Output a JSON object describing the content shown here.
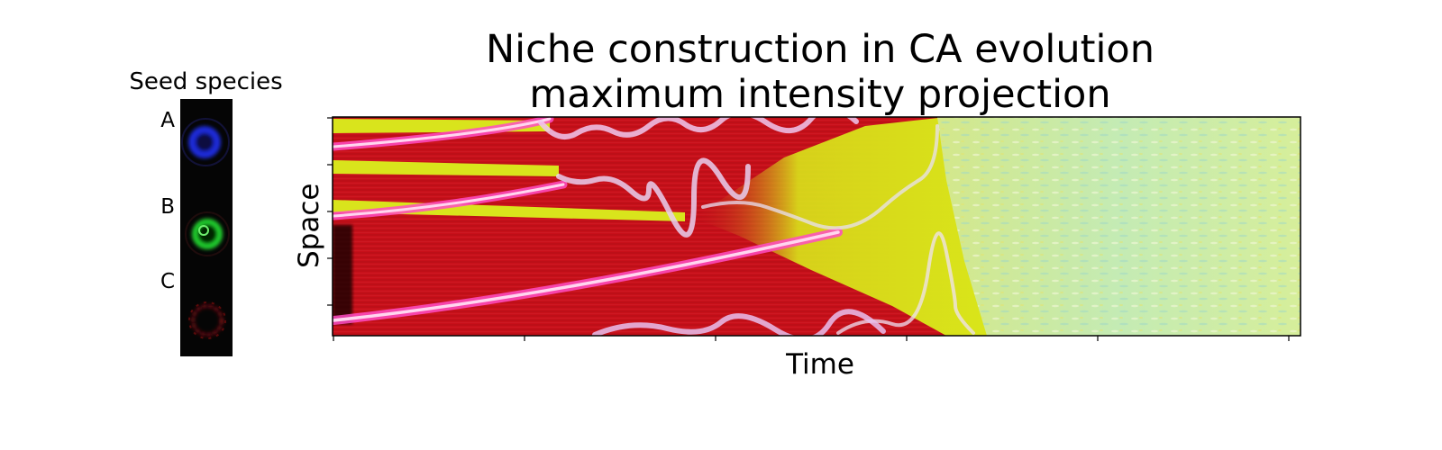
{
  "chart_data": [
    {
      "type": "heatmap",
      "title_lines": [
        "Niche construction in CA evolution",
        "maximum intensity projection"
      ],
      "xlabel": "Time",
      "ylabel": "Space",
      "x_tick_count": 6,
      "y_tick_count": 5,
      "grid": false,
      "colors": {
        "background": "#c8101a",
        "niche": "#d9e61a",
        "late": "#bfe6a8",
        "trail": "#ff5cc8",
        "trail_core": "#ffd0ee",
        "wave": "#e8d8f0"
      }
    },
    {
      "type": "image-panel",
      "title": "Seed species",
      "species": [
        {
          "label": "A",
          "color": "#1a2bd8",
          "shape": "ring"
        },
        {
          "label": "B",
          "color": "#22d22e",
          "shape": "ring"
        },
        {
          "label": "C",
          "color": "#c0141a",
          "shape": "star-ring"
        }
      ]
    }
  ]
}
